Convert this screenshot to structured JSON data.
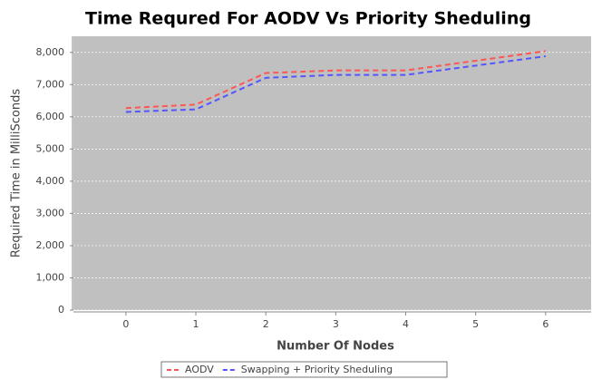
{
  "chart_data": {
    "type": "line",
    "title": "Time Requred For AODV Vs Priority Sheduling",
    "xlabel": "Number Of Nodes",
    "ylabel": "Required Time in MilliSconds",
    "x": [
      0,
      1,
      2,
      3,
      4,
      5,
      6
    ],
    "series": [
      {
        "name": "AODV",
        "color": "#ff5555",
        "values": [
          6270,
          6380,
          7360,
          7440,
          7440,
          7740,
          8040
        ]
      },
      {
        "name": "Swapping + Priority Sheduling",
        "color": "#5555ff",
        "values": [
          6150,
          6230,
          7210,
          7300,
          7300,
          7590,
          7880
        ]
      }
    ],
    "xlim": [
      -0.75,
      6.65
    ],
    "xticks": [
      0,
      1,
      2,
      3,
      4,
      5,
      6
    ],
    "ylim": [
      0,
      8500
    ],
    "yticks": [
      0,
      {
        "value": 1000,
        "label": "1,000"
      },
      {
        "value": 2000,
        "label": "2,000"
      },
      {
        "value": 3000,
        "label": "3,000"
      },
      {
        "value": 4000,
        "label": "4,000"
      },
      {
        "value": 5000,
        "label": "5,000"
      },
      {
        "value": 6000,
        "label": "6,000"
      },
      {
        "value": 7000,
        "label": "7,000"
      },
      {
        "value": 8000,
        "label": "8,000"
      }
    ],
    "grid": true,
    "legend": "bottom"
  }
}
